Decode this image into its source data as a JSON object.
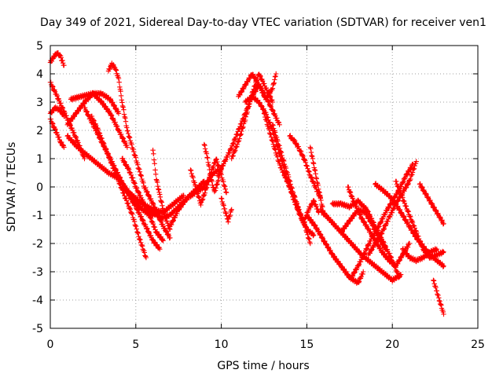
{
  "chart_data": {
    "type": "scatter",
    "title": "Day 349 of 2021, Sidereal Day-to-day VTEC variation (SDTVAR) for receiver ven1",
    "xlabel": "GPS time / hours",
    "ylabel": "SDTVAR / TECUs",
    "xlim": [
      0,
      25
    ],
    "ylim": [
      -5,
      5
    ],
    "xticks": [
      0,
      5,
      10,
      15,
      20,
      25
    ],
    "yticks": [
      -5,
      -4,
      -3,
      -2,
      -1,
      0,
      1,
      2,
      3,
      4,
      5
    ],
    "grid": true,
    "marker": "plus",
    "color": "#ff0000",
    "series": [
      {
        "x": [
          0.0,
          0.2,
          0.4,
          0.6,
          0.8
        ],
        "y": [
          4.4,
          4.6,
          4.75,
          4.6,
          4.3
        ]
      },
      {
        "x": [
          0.0,
          0.3,
          0.6,
          0.8
        ],
        "y": [
          2.6,
          2.8,
          2.7,
          2.5
        ]
      },
      {
        "x": [
          0.0,
          0.3,
          0.6,
          0.8
        ],
        "y": [
          2.4,
          2.0,
          1.6,
          1.4
        ]
      },
      {
        "x": [
          0.0,
          0.4,
          1.0,
          1.6,
          2.0
        ],
        "y": [
          3.7,
          3.2,
          2.4,
          1.6,
          1.0
        ]
      },
      {
        "x": [
          1.0,
          1.5,
          2.0,
          2.5,
          3.0,
          3.5,
          4.0
        ],
        "y": [
          2.2,
          2.6,
          3.0,
          3.3,
          3.3,
          3.1,
          2.6
        ]
      },
      {
        "x": [
          1.2,
          1.8,
          2.5,
          3.0,
          3.5,
          4.0,
          4.5
        ],
        "y": [
          3.1,
          3.2,
          3.3,
          3.0,
          2.6,
          2.0,
          1.4
        ]
      },
      {
        "x": [
          1.0,
          1.6,
          2.2,
          2.8,
          3.4,
          4.0,
          4.6,
          5.2,
          5.8,
          6.4
        ],
        "y": [
          1.8,
          1.4,
          1.1,
          0.8,
          0.5,
          0.3,
          -0.2,
          -0.7,
          -1.0,
          -0.9
        ]
      },
      {
        "x": [
          2.0,
          2.5,
          3.0,
          3.5,
          4.0,
          4.5,
          5.0,
          5.5,
          6.0,
          6.4
        ],
        "y": [
          2.8,
          2.2,
          1.6,
          1.0,
          0.4,
          -0.2,
          -0.7,
          -1.3,
          -1.9,
          -2.2
        ]
      },
      {
        "x": [
          2.4,
          2.8,
          3.2,
          3.6,
          4.0,
          4.4,
          4.8,
          5.2,
          5.6
        ],
        "y": [
          2.5,
          2.0,
          1.4,
          0.8,
          0.2,
          -0.4,
          -1.0,
          -1.8,
          -2.5
        ]
      },
      {
        "x": [
          3.4,
          3.6,
          3.8,
          4.0,
          4.2,
          4.5,
          5.0,
          5.5,
          6.0,
          6.6,
          7.0
        ],
        "y": [
          4.1,
          4.35,
          4.2,
          3.8,
          3.0,
          2.0,
          1.0,
          0.0,
          -0.6,
          -1.4,
          -1.8
        ]
      },
      {
        "x": [
          4.2,
          4.6,
          5.0,
          5.4,
          5.8,
          6.2,
          6.6
        ],
        "y": [
          1.0,
          0.6,
          0.0,
          -0.5,
          -1.0,
          -1.6,
          -1.9
        ]
      },
      {
        "x": [
          4.2,
          4.8,
          5.4,
          6.0,
          6.6,
          7.2,
          7.8
        ],
        "y": [
          0.0,
          -0.3,
          -0.6,
          -0.8,
          -0.9,
          -0.6,
          -0.3
        ]
      },
      {
        "x": [
          6.0,
          6.1,
          6.2,
          6.4,
          6.6,
          6.8,
          7.0
        ],
        "y": [
          1.3,
          0.8,
          0.3,
          -0.3,
          -0.8,
          -1.2,
          -1.5
        ]
      },
      {
        "x": [
          5.5,
          6.0,
          6.5,
          7.0,
          7.5,
          8.0,
          8.5,
          9.0
        ],
        "y": [
          -0.8,
          -0.9,
          -1.1,
          -1.0,
          -0.7,
          -0.4,
          -0.1,
          0.2
        ]
      },
      {
        "x": [
          7.0,
          7.5,
          8.0,
          8.5,
          9.0,
          9.4,
          9.8
        ],
        "y": [
          -1.4,
          -0.8,
          -0.4,
          -0.2,
          0.0,
          0.4,
          0.6
        ]
      },
      {
        "x": [
          8.2,
          8.5,
          8.8,
          9.1,
          9.4,
          9.7,
          10.0,
          10.3
        ],
        "y": [
          0.6,
          0.0,
          -0.6,
          -0.1,
          0.5,
          1.0,
          0.4,
          -0.2
        ]
      },
      {
        "x": [
          9.0,
          9.2,
          9.4,
          9.6,
          9.8,
          10.0
        ],
        "y": [
          1.5,
          1.0,
          0.3,
          -0.2,
          0.2,
          0.7
        ]
      },
      {
        "x": [
          10.0,
          10.2,
          10.4,
          10.6
        ],
        "y": [
          -0.4,
          -0.8,
          -1.2,
          -0.8
        ]
      },
      {
        "x": [
          9.8,
          10.2,
          10.6,
          11.0,
          11.4,
          11.8,
          12.2,
          12.6,
          13.0,
          13.4
        ],
        "y": [
          0.4,
          0.9,
          1.4,
          2.0,
          2.6,
          3.2,
          3.6,
          3.2,
          2.7,
          2.2
        ]
      },
      {
        "x": [
          10.6,
          11.0,
          11.4,
          11.8,
          12.2,
          12.6,
          13.0
        ],
        "y": [
          1.0,
          1.6,
          2.4,
          3.3,
          4.0,
          3.5,
          3.0
        ]
      },
      {
        "x": [
          11.0,
          11.4,
          11.8,
          12.2,
          12.6,
          13.0,
          13.2
        ],
        "y": [
          3.2,
          3.6,
          4.0,
          3.6,
          3.1,
          3.5,
          4.0
        ]
      },
      {
        "x": [
          11.4,
          11.8,
          12.2,
          12.6,
          13.0,
          13.4,
          13.8,
          14.2,
          14.6,
          15.0,
          15.4
        ],
        "y": [
          3.0,
          3.2,
          3.0,
          2.6,
          2.0,
          1.2,
          0.4,
          -0.4,
          -1.0,
          -1.5,
          -1.7
        ]
      },
      {
        "x": [
          12.5,
          12.8,
          13.1,
          13.4,
          13.7,
          14.0,
          14.3,
          14.6,
          14.9,
          15.2
        ],
        "y": [
          2.6,
          2.0,
          1.4,
          0.8,
          0.4,
          0.0,
          -0.4,
          -0.9,
          -1.4,
          -2.0
        ]
      },
      {
        "x": [
          13.0,
          13.3,
          13.6,
          13.9,
          14.2,
          14.5,
          14.8,
          15.1,
          15.4,
          15.7
        ],
        "y": [
          2.2,
          1.6,
          1.0,
          0.4,
          -0.2,
          -0.8,
          -1.3,
          -0.8,
          -0.5,
          -0.9
        ]
      },
      {
        "x": [
          14.0,
          14.3,
          14.6,
          14.9,
          15.2,
          15.5,
          15.8
        ],
        "y": [
          1.8,
          1.6,
          1.3,
          0.9,
          0.4,
          0.0,
          -0.4
        ]
      },
      {
        "x": [
          15.2,
          15.4,
          15.6,
          15.8,
          16.0
        ],
        "y": [
          1.4,
          0.8,
          0.2,
          -0.4,
          -1.0
        ]
      },
      {
        "x": [
          15.0,
          15.5,
          16.0,
          16.5,
          17.0,
          17.5,
          18.0,
          18.3
        ],
        "y": [
          -1.0,
          -1.4,
          -1.9,
          -2.4,
          -2.8,
          -3.2,
          -3.4,
          -3.0
        ]
      },
      {
        "x": [
          15.8,
          16.4,
          17.0,
          17.6,
          18.2,
          18.8,
          19.4,
          20.0,
          20.5
        ],
        "y": [
          -0.8,
          -1.2,
          -1.6,
          -2.0,
          -2.4,
          -2.7,
          -3.0,
          -3.3,
          -3.1
        ]
      },
      {
        "x": [
          16.5,
          17.0,
          17.5,
          18.0,
          18.5,
          19.0,
          19.5,
          20.0,
          20.4
        ],
        "y": [
          -0.6,
          -0.6,
          -0.7,
          -0.5,
          -0.8,
          -1.4,
          -2.0,
          -2.6,
          -3.2
        ]
      },
      {
        "x": [
          17.0,
          17.5,
          18.0,
          18.4,
          18.8,
          19.2,
          19.6
        ],
        "y": [
          -1.6,
          -1.2,
          -0.8,
          -0.9,
          -1.3,
          -1.8,
          -2.2
        ]
      },
      {
        "x": [
          17.4,
          17.8,
          18.2,
          18.6,
          19.0,
          19.4,
          19.8,
          20.2,
          20.6,
          21.0
        ],
        "y": [
          0.0,
          -0.6,
          -1.1,
          -1.5,
          -1.9,
          -2.3,
          -2.6,
          -2.8,
          -2.4,
          -2.0
        ]
      },
      {
        "x": [
          17.6,
          18.0,
          18.4,
          18.8,
          19.2,
          19.6,
          20.0,
          20.4,
          20.8,
          21.2
        ],
        "y": [
          -3.2,
          -2.8,
          -2.3,
          -1.8,
          -1.4,
          -0.9,
          -0.5,
          -0.1,
          0.4,
          0.8
        ]
      },
      {
        "x": [
          18.6,
          19.0,
          19.4,
          19.8,
          20.2,
          20.6,
          21.0,
          21.4
        ],
        "y": [
          -2.4,
          -2.0,
          -1.6,
          -1.1,
          -0.6,
          -0.2,
          0.2,
          0.9
        ]
      },
      {
        "x": [
          19.0,
          19.4,
          19.8,
          20.2,
          20.6,
          21.0,
          21.4,
          21.8,
          22.2,
          22.6,
          23.0
        ],
        "y": [
          0.1,
          -0.1,
          -0.3,
          -0.6,
          -1.0,
          -1.4,
          -1.8,
          -2.1,
          -2.4,
          -2.6,
          -2.8
        ]
      },
      {
        "x": [
          20.2,
          20.6,
          21.0,
          21.4,
          21.8,
          22.2,
          22.6,
          23.0
        ],
        "y": [
          0.2,
          -0.4,
          -1.0,
          -1.6,
          -2.2,
          -2.5,
          -2.4,
          -2.3
        ]
      },
      {
        "x": [
          20.6,
          21.0,
          21.4,
          21.8,
          22.2,
          22.6
        ],
        "y": [
          -2.2,
          -2.5,
          -2.6,
          -2.5,
          -2.3,
          -2.2
        ]
      },
      {
        "x": [
          21.6,
          22.0,
          22.4,
          22.8,
          23.0
        ],
        "y": [
          0.1,
          -0.3,
          -0.7,
          -1.1,
          -1.3
        ]
      },
      {
        "x": [
          22.4,
          22.6,
          22.8,
          23.0
        ],
        "y": [
          -3.3,
          -3.7,
          -4.1,
          -4.5
        ]
      }
    ]
  }
}
